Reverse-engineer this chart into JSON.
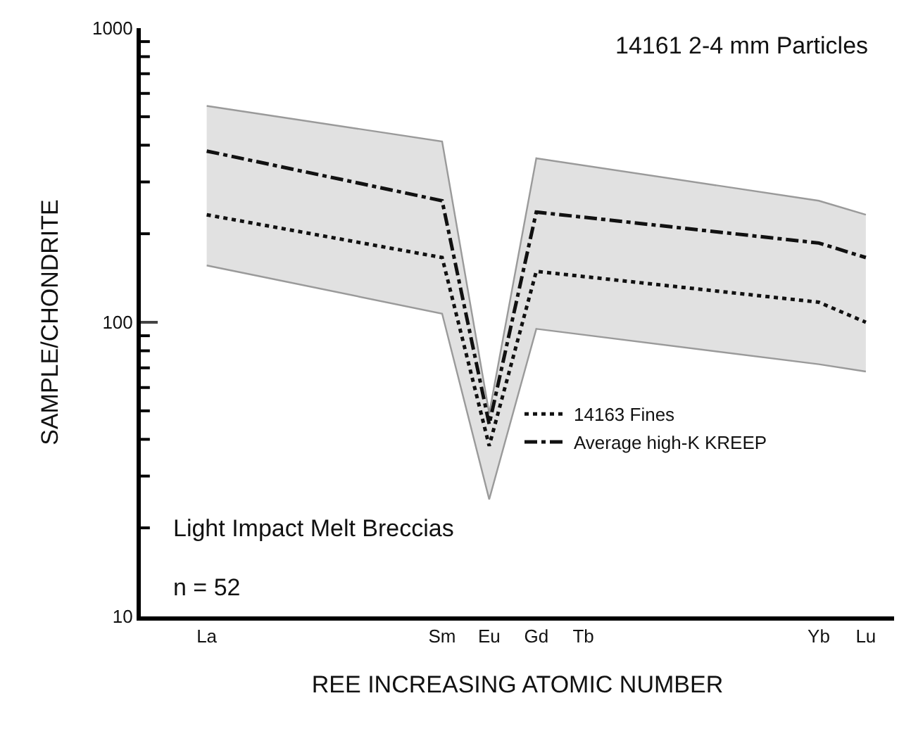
{
  "chart_data": {
    "type": "line",
    "xlabel": "REE INCREASING ATOMIC NUMBER",
    "ylabel": "SAMPLE/CHONDRITE",
    "log": "y",
    "grid": false,
    "legend": "bottom right",
    "marker": "none",
    "categories": [
      "La",
      null,
      null,
      null,
      null,
      "Sm",
      "Eu",
      "Gd",
      "Tb",
      null,
      null,
      null,
      null,
      "Yb",
      "Lu"
    ],
    "ylim": [
      10,
      1000
    ],
    "yticks": [
      10,
      100,
      1000
    ],
    "series": [
      {
        "type": "line",
        "color": "#9a9a9a",
        "line_style": "solid",
        "values": [
          156,
          null,
          null,
          null,
          null,
          107,
          25,
          95,
          null,
          null,
          null,
          null,
          null,
          72,
          68
        ]
      },
      {
        "type": "area",
        "color": "#9a9a9a",
        "values": [
          544,
          null,
          null,
          null,
          null,
          412,
          49,
          361,
          null,
          null,
          null,
          null,
          null,
          259,
          232
        ]
      },
      {
        "name": "Average high-K KREEP",
        "color": "#111111",
        "line_style": "dashed",
        "values": [
          382,
          null,
          null,
          null,
          null,
          259,
          45,
          237,
          null,
          null,
          null,
          null,
          null,
          186,
          166
        ]
      },
      {
        "name": "14163 Fines",
        "color": "#111111",
        "line_style": "dotted",
        "values": [
          232,
          null,
          null,
          null,
          null,
          166,
          38,
          149,
          null,
          null,
          null,
          null,
          null,
          117,
          100
        ]
      }
    ],
    "annotations": [
      "14161 2-4 mm Particles",
      "Light Impact Melt Breccias",
      "n = 52"
    ]
  }
}
